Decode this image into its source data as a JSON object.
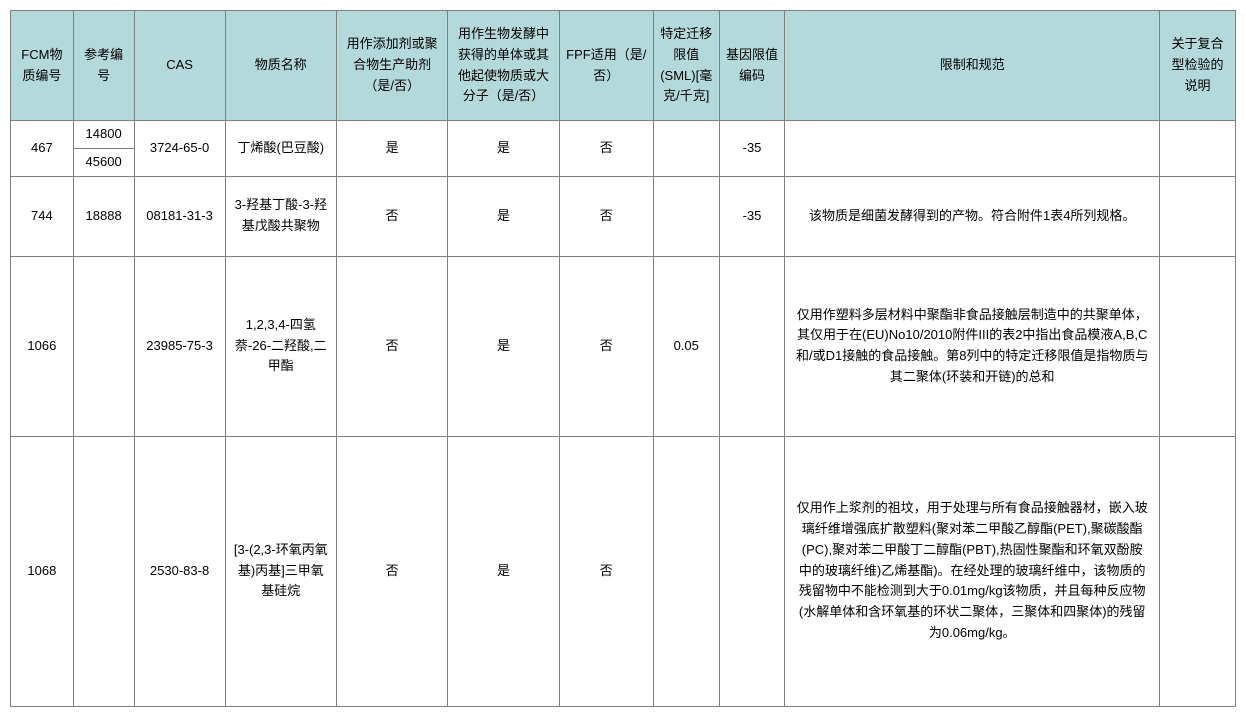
{
  "table": {
    "headers": {
      "fcm": "FCM物质编号",
      "ref": "参考编号",
      "cas": "CAS",
      "name": "物质名称",
      "additive": "用作添加剂或聚合物生产助剂（是/否）",
      "bio": "用作生物发酵中获得的单体或其他起使物质或大分子（是/否）",
      "fpf": "FPF适用（是/否）",
      "sml": "特定迁移限值(SML)[毫克/千克]",
      "gene": "基因限值编码",
      "restr": "限制和规范",
      "comp": "关于复合型检验的说明"
    },
    "rows": [
      {
        "fcm": "467",
        "ref_a": "14800",
        "ref_b": "45600",
        "cas": "3724-65-0",
        "name": "丁烯酸(巴豆酸)",
        "additive": "是",
        "bio": "是",
        "fpf": "否",
        "sml": "",
        "gene": "-35",
        "restr": "",
        "comp": ""
      },
      {
        "fcm": "744",
        "ref": "18888",
        "cas": "08181-31-3",
        "name": "3-羟基丁酸-3-羟基戊酸共聚物",
        "additive": "否",
        "bio": "是",
        "fpf": "否",
        "sml": "",
        "gene": "-35",
        "restr": "该物质是细菌发酵得到的产物。符合附件1表4所列规格。",
        "comp": ""
      },
      {
        "fcm": "1066",
        "ref": "",
        "cas": "23985-75-3",
        "name": "1,2,3,4-四氢萘-26-二羟酸,二甲酯",
        "additive": "否",
        "bio": "是",
        "fpf": "否",
        "sml": "0.05",
        "gene": "",
        "restr": "仅用作塑料多层材料中聚酯非食品接触层制造中的共聚单体，其仅用于在(EU)No10/2010附件III的表2中指出食品模液A,B,C和/或D1接触的食品接触。第8列中的特定迁移限值是指物质与其二聚体(环装和开链)的总和",
        "comp": ""
      },
      {
        "fcm": "1068",
        "ref": "",
        "cas": "2530-83-8",
        "name": "[3-(2,3-环氧丙氧基)丙基]三甲氧基硅烷",
        "additive": "否",
        "bio": "是",
        "fpf": "否",
        "sml": "",
        "gene": "",
        "restr": "仅用作上浆剂的祖坟，用于处理与所有食品接触器材，嵌入玻璃纤维增强底扩散塑料(聚对苯二甲酸乙醇酯(PET),聚碳酸酯(PC),聚对苯二甲酸丁二醇酯(PBT),热固性聚酯和环氧双酚胺中的玻璃纤维)乙烯基酯)。在经处理的玻璃纤维中，该物质的残留物中不能检测到大于0.01mg/kg该物质，并且每种反应物(水解单体和含环氧基的环状二聚体，三聚体和四聚体)的残留为0.06mg/kg。",
        "comp": ""
      }
    ],
    "colors": {
      "header_bg": "#b4d9da",
      "border": "#7f7f7f",
      "text": "#000000",
      "background": "#ffffff"
    },
    "font": {
      "family": "Microsoft YaHei",
      "size": 13
    }
  }
}
